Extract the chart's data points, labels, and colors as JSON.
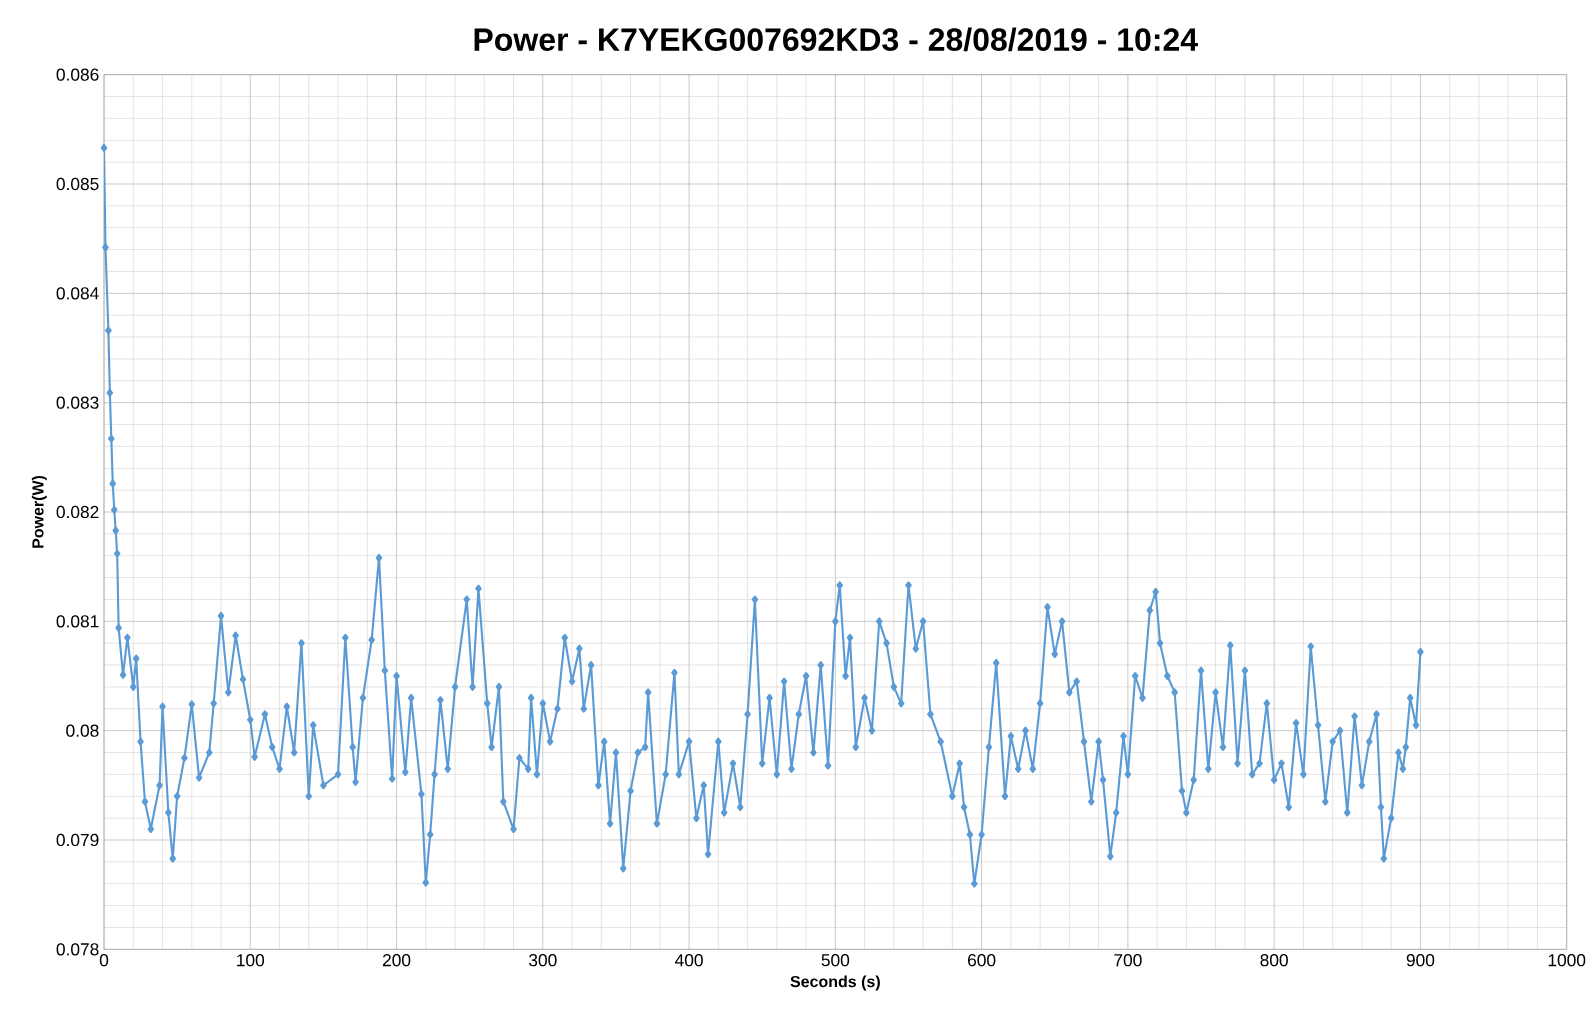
{
  "chart_data": {
    "type": "line",
    "title": "Power - K7YEKG007692KD3 - 28/08/2019 - 10:24",
    "xlabel": "Seconds (s)",
    "ylabel": "Power(W)",
    "xlim": [
      0,
      1000
    ],
    "xticks": [
      0,
      100,
      200,
      300,
      400,
      500,
      600,
      700,
      800,
      900,
      1000
    ],
    "ylim": [
      0.078,
      0.086
    ],
    "yticks": [
      0.078,
      0.079,
      0.08,
      0.081,
      0.082,
      0.083,
      0.084,
      0.085,
      0.086
    ],
    "grid": true,
    "marker": "diamond",
    "line_style": "solid",
    "series": [
      {
        "color": "#5b9bd5",
        "x": [
          0,
          1,
          3,
          4,
          5,
          6,
          7,
          8,
          9,
          10,
          13,
          16,
          20,
          22,
          25,
          28,
          32,
          38,
          40,
          44,
          47,
          50,
          55,
          60,
          65,
          72,
          75,
          80,
          85,
          90,
          95,
          100,
          103,
          110,
          115,
          120,
          125,
          130,
          135,
          140,
          143,
          150,
          160,
          165,
          170,
          172,
          177,
          183,
          188,
          192,
          197,
          200,
          206,
          210,
          217,
          220,
          223,
          226,
          230,
          235,
          240,
          248,
          252,
          256,
          262,
          265,
          270,
          273,
          280,
          284,
          290,
          292,
          296,
          300,
          305,
          310,
          315,
          320,
          325,
          328,
          333,
          338,
          342,
          346,
          350,
          355,
          360,
          365,
          370,
          372,
          378,
          384,
          390,
          393,
          400,
          405,
          410,
          413,
          420,
          424,
          430,
          435,
          440,
          445,
          450,
          455,
          460,
          465,
          470,
          475,
          480,
          485,
          490,
          495,
          500,
          503,
          507,
          510,
          514,
          520,
          525,
          530,
          535,
          540,
          545,
          550,
          555,
          560,
          565,
          572,
          580,
          585,
          588,
          592,
          595,
          600,
          605,
          610,
          616,
          620,
          625,
          630,
          635,
          640,
          645,
          650,
          655,
          660,
          665,
          670,
          675,
          680,
          683,
          688,
          692,
          697,
          700,
          705,
          710,
          715,
          719,
          722,
          727,
          732,
          737,
          740,
          745,
          750,
          755,
          760,
          765,
          770,
          775,
          780,
          785,
          790,
          795,
          800,
          805,
          810,
          815,
          820,
          825,
          830,
          835,
          840,
          845,
          850,
          855,
          860,
          865,
          870,
          873,
          875,
          880,
          885,
          888,
          890,
          893,
          897,
          900
        ],
        "values": [
          0.08533,
          0.08442,
          0.08366,
          0.08309,
          0.08267,
          0.08226,
          0.08202,
          0.08183,
          0.08162,
          0.08094,
          0.08051,
          0.08085,
          0.0804,
          0.08066,
          0.0799,
          0.07935,
          0.0791,
          0.0795,
          0.08022,
          0.07925,
          0.07883,
          0.0794,
          0.07975,
          0.08024,
          0.07957,
          0.0798,
          0.08025,
          0.08105,
          0.08035,
          0.08087,
          0.08047,
          0.0801,
          0.07976,
          0.08015,
          0.07985,
          0.07965,
          0.08022,
          0.0798,
          0.0808,
          0.0794,
          0.08005,
          0.0795,
          0.0796,
          0.08085,
          0.07985,
          0.07953,
          0.0803,
          0.08083,
          0.08158,
          0.08055,
          0.07956,
          0.0805,
          0.07962,
          0.0803,
          0.07942,
          0.07861,
          0.07905,
          0.0796,
          0.08028,
          0.07965,
          0.0804,
          0.0812,
          0.0804,
          0.0813,
          0.08025,
          0.07985,
          0.0804,
          0.07935,
          0.0791,
          0.07975,
          0.07965,
          0.0803,
          0.0796,
          0.08025,
          0.0799,
          0.0802,
          0.08085,
          0.08045,
          0.08075,
          0.0802,
          0.0806,
          0.0795,
          0.0799,
          0.07915,
          0.0798,
          0.07874,
          0.07945,
          0.0798,
          0.07985,
          0.08035,
          0.07915,
          0.0796,
          0.08053,
          0.0796,
          0.0799,
          0.0792,
          0.0795,
          0.07887,
          0.0799,
          0.07925,
          0.0797,
          0.0793,
          0.08015,
          0.0812,
          0.0797,
          0.0803,
          0.0796,
          0.08045,
          0.07965,
          0.08015,
          0.0805,
          0.0798,
          0.0806,
          0.07968,
          0.081,
          0.08133,
          0.0805,
          0.08085,
          0.07985,
          0.0803,
          0.08,
          0.081,
          0.0808,
          0.0804,
          0.08025,
          0.08133,
          0.08075,
          0.081,
          0.08015,
          0.0799,
          0.0794,
          0.0797,
          0.0793,
          0.07905,
          0.0786,
          0.07905,
          0.07985,
          0.08062,
          0.0794,
          0.07995,
          0.07965,
          0.08,
          0.07965,
          0.08025,
          0.08113,
          0.0807,
          0.081,
          0.08035,
          0.08045,
          0.0799,
          0.07935,
          0.0799,
          0.07955,
          0.07885,
          0.07925,
          0.07995,
          0.0796,
          0.0805,
          0.0803,
          0.0811,
          0.08127,
          0.0808,
          0.0805,
          0.08035,
          0.07945,
          0.07925,
          0.07955,
          0.08055,
          0.07965,
          0.08035,
          0.07985,
          0.08078,
          0.0797,
          0.08055,
          0.0796,
          0.0797,
          0.08025,
          0.07955,
          0.0797,
          0.0793,
          0.08007,
          0.0796,
          0.08077,
          0.08005,
          0.07935,
          0.0799,
          0.08,
          0.07925,
          0.08013,
          0.0795,
          0.0799,
          0.08015,
          0.0793,
          0.07883,
          0.0792,
          0.0798,
          0.07965,
          0.07985,
          0.0803,
          0.08005,
          0.08072
        ]
      }
    ]
  }
}
